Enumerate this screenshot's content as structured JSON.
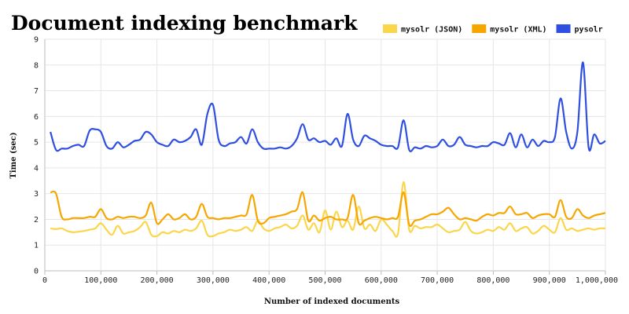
{
  "chart_data": {
    "type": "line",
    "title": "Document indexing benchmark",
    "xlabel": "Number of indexed documents",
    "ylabel": "Time (sec)",
    "xlim": [
      0,
      1000000
    ],
    "ylim": [
      0,
      9
    ],
    "x_ticks": [
      0,
      100000,
      200000,
      300000,
      400000,
      500000,
      600000,
      700000,
      800000,
      900000,
      1000000
    ],
    "x_tick_labels": [
      "0",
      "100,000",
      "200,000",
      "300,000",
      "400,000",
      "500,000",
      "600,000",
      "700,000",
      "800,000",
      "900,000",
      "1,000,000"
    ],
    "y_ticks": [
      0,
      1,
      2,
      3,
      4,
      5,
      6,
      7,
      8,
      9
    ],
    "y_tick_labels": [
      "0",
      "1",
      "2",
      "3",
      "4",
      "5",
      "6",
      "7",
      "8",
      "9"
    ],
    "grid": true,
    "legend": "top-right",
    "x": [
      10000,
      20000,
      30000,
      40000,
      50000,
      60000,
      70000,
      80000,
      90000,
      100000,
      110000,
      120000,
      130000,
      140000,
      150000,
      160000,
      170000,
      180000,
      190000,
      200000,
      210000,
      220000,
      230000,
      240000,
      250000,
      260000,
      270000,
      280000,
      290000,
      300000,
      310000,
      320000,
      330000,
      340000,
      350000,
      360000,
      370000,
      380000,
      390000,
      400000,
      410000,
      420000,
      430000,
      440000,
      450000,
      460000,
      470000,
      480000,
      490000,
      500000,
      510000,
      520000,
      530000,
      540000,
      550000,
      560000,
      570000,
      580000,
      590000,
      600000,
      610000,
      620000,
      630000,
      640000,
      650000,
      660000,
      670000,
      680000,
      690000,
      700000,
      710000,
      720000,
      730000,
      740000,
      750000,
      760000,
      770000,
      780000,
      790000,
      800000,
      810000,
      820000,
      830000,
      840000,
      850000,
      860000,
      870000,
      880000,
      890000,
      900000,
      910000,
      920000,
      930000,
      940000,
      950000,
      960000,
      970000,
      980000,
      990000,
      1000000
    ],
    "series": [
      {
        "name": "mysolr (JSON)",
        "color": "#fbd54a",
        "values": [
          1.65,
          1.62,
          1.65,
          1.55,
          1.5,
          1.52,
          1.55,
          1.6,
          1.65,
          1.85,
          1.6,
          1.4,
          1.75,
          1.45,
          1.5,
          1.55,
          1.7,
          1.9,
          1.4,
          1.35,
          1.5,
          1.45,
          1.55,
          1.5,
          1.6,
          1.55,
          1.65,
          1.95,
          1.4,
          1.35,
          1.45,
          1.5,
          1.6,
          1.55,
          1.6,
          1.7,
          1.55,
          1.95,
          1.65,
          1.55,
          1.65,
          1.7,
          1.8,
          1.65,
          1.75,
          2.15,
          1.6,
          1.85,
          1.5,
          2.35,
          1.6,
          2.3,
          1.7,
          1.95,
          1.6,
          2.5,
          1.65,
          1.8,
          1.55,
          2.0,
          1.8,
          1.55,
          1.45,
          3.45,
          1.6,
          1.75,
          1.65,
          1.7,
          1.7,
          1.8,
          1.65,
          1.5,
          1.55,
          1.6,
          1.9,
          1.55,
          1.45,
          1.5,
          1.6,
          1.55,
          1.7,
          1.6,
          1.85,
          1.55,
          1.65,
          1.7,
          1.45,
          1.55,
          1.75,
          1.6,
          1.5,
          2.05,
          1.6,
          1.65,
          1.55,
          1.6,
          1.65,
          1.6,
          1.65,
          1.65
        ]
      },
      {
        "name": "mysolr (XML)",
        "color": "#f7a600",
        "values": [
          3.05,
          3.0,
          2.1,
          2.0,
          2.05,
          2.05,
          2.05,
          2.1,
          2.1,
          2.4,
          2.05,
          2.0,
          2.1,
          2.05,
          2.1,
          2.1,
          2.05,
          2.15,
          2.65,
          1.85,
          2.0,
          2.2,
          2.0,
          2.05,
          2.2,
          2.0,
          2.1,
          2.6,
          2.1,
          2.05,
          2.0,
          2.05,
          2.05,
          2.1,
          2.15,
          2.2,
          2.95,
          1.95,
          1.85,
          2.05,
          2.1,
          2.15,
          2.2,
          2.3,
          2.4,
          3.05,
          1.95,
          2.15,
          1.95,
          2.05,
          2.1,
          2.0,
          2.0,
          2.05,
          2.95,
          1.85,
          1.95,
          2.05,
          2.1,
          2.05,
          2.0,
          2.05,
          2.1,
          3.05,
          1.8,
          1.95,
          2.0,
          2.1,
          2.2,
          2.2,
          2.3,
          2.45,
          2.2,
          2.0,
          2.05,
          2.0,
          1.95,
          2.1,
          2.2,
          2.15,
          2.25,
          2.25,
          2.5,
          2.2,
          2.2,
          2.25,
          2.05,
          2.15,
          2.2,
          2.2,
          2.1,
          2.75,
          2.1,
          2.05,
          2.4,
          2.15,
          2.05,
          2.15,
          2.2,
          2.25
        ]
      },
      {
        "name": "pysolr",
        "color": "#2f4fe0",
        "values": [
          5.4,
          4.7,
          4.75,
          4.75,
          4.85,
          4.9,
          4.85,
          5.45,
          5.5,
          5.4,
          4.85,
          4.75,
          5.0,
          4.8,
          4.9,
          5.05,
          5.1,
          5.4,
          5.3,
          5.0,
          4.9,
          4.85,
          5.1,
          5.0,
          5.05,
          5.2,
          5.5,
          4.9,
          6.1,
          6.45,
          5.1,
          4.85,
          4.95,
          5.0,
          5.2,
          4.95,
          5.5,
          5.0,
          4.75,
          4.75,
          4.75,
          4.8,
          4.75,
          4.85,
          5.15,
          5.7,
          5.1,
          5.15,
          5.0,
          5.05,
          4.9,
          5.15,
          4.85,
          6.1,
          5.1,
          4.85,
          5.25,
          5.15,
          5.05,
          4.9,
          4.85,
          4.85,
          4.8,
          5.85,
          4.7,
          4.8,
          4.75,
          4.85,
          4.8,
          4.85,
          5.1,
          4.85,
          4.9,
          5.2,
          4.9,
          4.85,
          4.8,
          4.85,
          4.85,
          5.0,
          4.95,
          4.9,
          5.35,
          4.8,
          5.3,
          4.8,
          5.1,
          4.85,
          5.05,
          5.0,
          5.2,
          6.7,
          5.4,
          4.75,
          5.4,
          8.1,
          4.8,
          5.3,
          4.95,
          5.05
        ]
      }
    ]
  }
}
